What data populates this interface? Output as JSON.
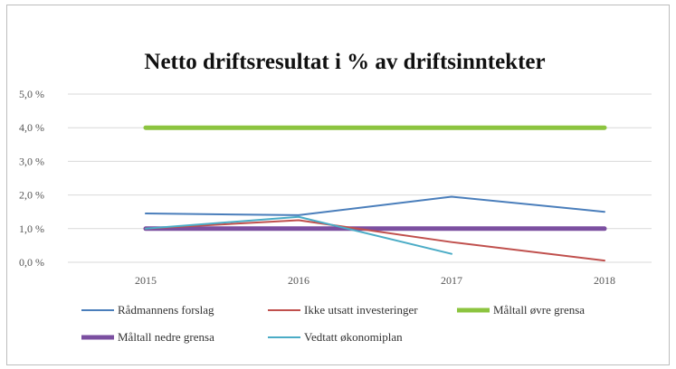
{
  "chart_data": {
    "type": "line",
    "title": "Netto driftsresultat i % av driftsinntekter",
    "categories": [
      "2015",
      "2016",
      "2017",
      "2018"
    ],
    "ylim": [
      0,
      5
    ],
    "yticks": [
      "0,0 %",
      "1,0 %",
      "2,0 %",
      "3,0 %",
      "4,0 %",
      "5,0 %"
    ],
    "grid": true,
    "legend_position": "bottom",
    "series": [
      {
        "name": "Rådmannens forslag",
        "values": [
          1.45,
          1.4,
          1.95,
          1.5
        ],
        "color": "#4a7ebb",
        "weight": "thin"
      },
      {
        "name": "Ikke utsatt investeringer",
        "values": [
          1.0,
          1.25,
          0.6,
          0.05
        ],
        "color": "#c0504d",
        "weight": "thin"
      },
      {
        "name": "Måltall øvre grensa",
        "values": [
          4.0,
          4.0,
          4.0,
          4.0
        ],
        "color": "#8cc43f",
        "weight": "thick"
      },
      {
        "name": "Måltall nedre grensa",
        "values": [
          1.0,
          1.0,
          1.0,
          1.0
        ],
        "color": "#7b4fa0",
        "weight": "thick"
      },
      {
        "name": "Vedtatt økonomiplan",
        "values": [
          1.0,
          1.35,
          0.25,
          null
        ],
        "color": "#4bacc6",
        "weight": "thin"
      }
    ]
  }
}
